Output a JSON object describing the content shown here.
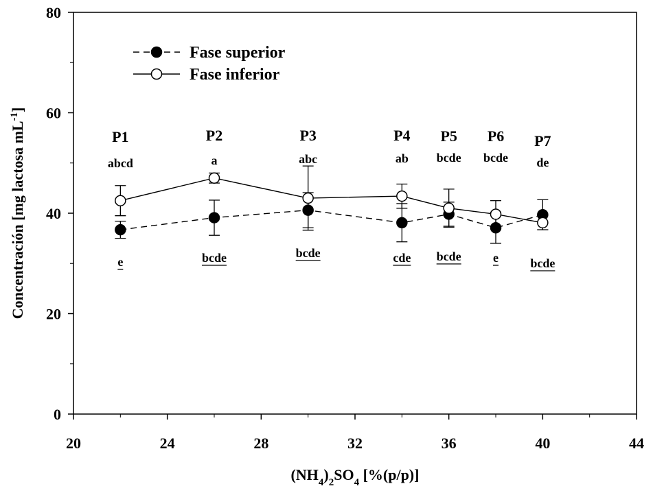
{
  "chart_data": {
    "type": "line",
    "xlabel": "(NH4)2SO4 [%(p/p)]",
    "ylabel": "Concentración [mg lactosa mL-1]",
    "xlim": [
      20,
      44
    ],
    "ylim": [
      0,
      80
    ],
    "xticks": [
      20,
      24,
      28,
      32,
      36,
      40,
      44
    ],
    "yticks": [
      0,
      20,
      40,
      60,
      80
    ],
    "grid": false,
    "legend_position": "top-left",
    "series": [
      {
        "name": "Fase superior",
        "style": "dashed",
        "marker": "filled-circle",
        "x": [
          22,
          26,
          30,
          34,
          36,
          38,
          40
        ],
        "y": [
          36.7,
          39.1,
          40.6,
          38.1,
          39.8,
          37.1,
          39.7
        ],
        "err": [
          1.7,
          3.5,
          3.5,
          3.8,
          2.4,
          3.1,
          3.0
        ]
      },
      {
        "name": "Fase inferior",
        "style": "solid",
        "marker": "open-circle",
        "x": [
          22,
          26,
          30,
          34,
          36,
          38,
          40
        ],
        "y": [
          42.5,
          47.0,
          43.0,
          43.4,
          41.0,
          39.8,
          38.1
        ],
        "err": [
          3.0,
          1.0,
          6.4,
          2.4,
          3.8,
          2.7,
          1.4
        ]
      }
    ],
    "point_labels": [
      {
        "label": "P1",
        "upper": "abcd",
        "lower": "e"
      },
      {
        "label": "P2",
        "upper": "a",
        "lower": "bcde"
      },
      {
        "label": "P3",
        "upper": "abc",
        "lower": "bcde"
      },
      {
        "label": "P4",
        "upper": "ab",
        "lower": "cde"
      },
      {
        "label": "P5",
        "upper": "bcde",
        "lower": "bcde"
      },
      {
        "label": "P6",
        "upper": "bcde",
        "lower": "e"
      },
      {
        "label": "P7",
        "upper": "de",
        "lower": "bcde"
      }
    ]
  }
}
